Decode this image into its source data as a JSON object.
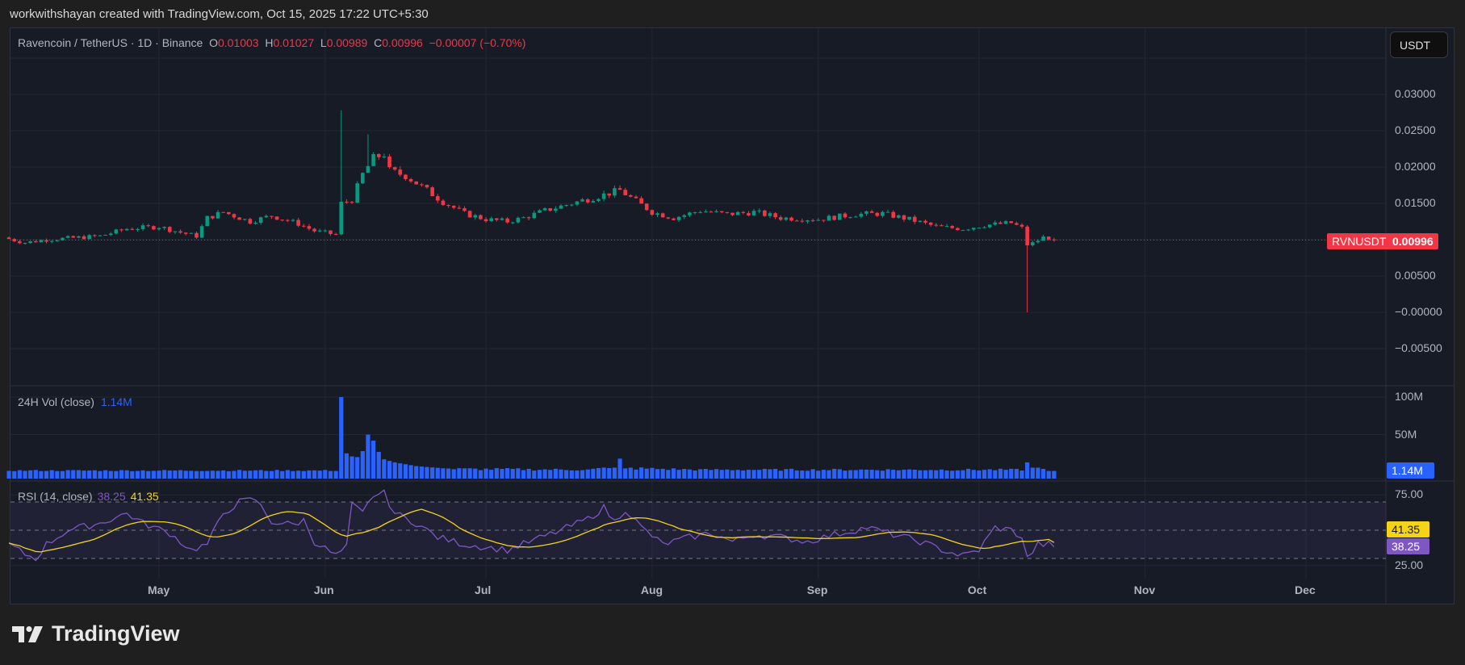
{
  "header": {
    "credit": "workwithshayan created with TradingView.com, Oct 15, 2025 17:22 UTC+5:30"
  },
  "legend": {
    "symbol": "Ravencoin / TetherUS · 1D · Binance",
    "o_label": "O",
    "o": "0.01003",
    "h_label": "H",
    "h": "0.01027",
    "l_label": "L",
    "l": "0.00989",
    "c_label": "C",
    "c": "0.00996",
    "change": "−0.00007 (−0.70%)"
  },
  "currency_button": "USDT",
  "price_axis": [
    "0.03000",
    "0.02500",
    "0.02000",
    "0.01500",
    "0.00500",
    "−0.00000",
    "−0.00500"
  ],
  "price_axis_values": [
    0.03,
    0.025,
    0.02,
    0.015,
    0.005,
    0,
    -0.005
  ],
  "last_price": {
    "symbol": "RVNUSDT",
    "value": "0.00996",
    "price": 0.00996
  },
  "volume": {
    "label": "24H Vol (close)",
    "value": "1.14M",
    "axis": [
      "100M",
      "50M"
    ]
  },
  "rsi": {
    "label": "RSI (14, close)",
    "value": "38.25",
    "ma_value": "41.35",
    "axis": [
      "75.00",
      "25.00"
    ]
  },
  "time_axis": [
    "May",
    "Jun",
    "Jul",
    "Aug",
    "Sep",
    "Oct",
    "Nov",
    "Dec"
  ],
  "brand": "TradingView",
  "colors": {
    "up": "#089981",
    "down": "#f23645",
    "volume": "#2962ff",
    "rsi": "#7e57c2",
    "rsi_ma": "#f5d316"
  },
  "chart_data": {
    "type": "candlestick",
    "title": "Ravencoin / TetherUS · 1D · Binance",
    "ylim": [
      -0.0075,
      0.0355
    ],
    "close_keypoints": [
      [
        "2025-04-03",
        0.0101
      ],
      [
        "2025-04-06",
        0.0096
      ],
      [
        "2025-04-10",
        0.01
      ],
      [
        "2025-04-20",
        0.0105
      ],
      [
        "2025-04-25",
        0.0115
      ],
      [
        "2025-05-01",
        0.0118
      ],
      [
        "2025-05-05",
        0.011
      ],
      [
        "2025-05-08",
        0.0105
      ],
      [
        "2025-05-10",
        0.013
      ],
      [
        "2025-05-13",
        0.0138
      ],
      [
        "2025-05-18",
        0.0125
      ],
      [
        "2025-05-22",
        0.0133
      ],
      [
        "2025-05-27",
        0.0122
      ],
      [
        "2025-05-30",
        0.0112
      ],
      [
        "2025-06-03",
        0.0107
      ],
      [
        "2025-06-04",
        0.015
      ],
      [
        "2025-06-06",
        0.0155
      ],
      [
        "2025-06-08",
        0.019
      ],
      [
        "2025-06-10",
        0.0212
      ],
      [
        "2025-06-12",
        0.0218
      ],
      [
        "2025-06-13",
        0.0195
      ],
      [
        "2025-06-16",
        0.0188
      ],
      [
        "2025-06-20",
        0.0168
      ],
      [
        "2025-06-23",
        0.0152
      ],
      [
        "2025-06-27",
        0.0136
      ],
      [
        "2025-07-01",
        0.0128
      ],
      [
        "2025-07-05",
        0.0125
      ],
      [
        "2025-07-08",
        0.013
      ],
      [
        "2025-07-12",
        0.014
      ],
      [
        "2025-07-17",
        0.015
      ],
      [
        "2025-07-22",
        0.016
      ],
      [
        "2025-07-26",
        0.0168
      ],
      [
        "2025-07-28",
        0.0158
      ],
      [
        "2025-08-01",
        0.0138
      ],
      [
        "2025-08-05",
        0.013
      ],
      [
        "2025-08-10",
        0.014
      ],
      [
        "2025-08-15",
        0.0135
      ],
      [
        "2025-08-20",
        0.0138
      ],
      [
        "2025-08-25",
        0.013
      ],
      [
        "2025-09-01",
        0.0128
      ],
      [
        "2025-09-08",
        0.0135
      ],
      [
        "2025-09-13",
        0.0136
      ],
      [
        "2025-09-18",
        0.0128
      ],
      [
        "2025-09-23",
        0.0118
      ],
      [
        "2025-09-28",
        0.0115
      ],
      [
        "2025-10-02",
        0.012
      ],
      [
        "2025-10-07",
        0.0123
      ],
      [
        "2025-10-09",
        0.0116
      ],
      [
        "2025-10-10",
        0.0093
      ],
      [
        "2025-10-11",
        0.0095
      ],
      [
        "2025-10-12",
        0.0099
      ],
      [
        "2025-10-13",
        0.0103
      ],
      [
        "2025-10-14",
        0.01003
      ],
      [
        "2025-10-15",
        0.00996
      ]
    ],
    "extremes": [
      [
        "2025-06-04",
        "high",
        0.0278
      ],
      [
        "2025-06-09",
        "high",
        0.0245
      ],
      [
        "2025-10-10",
        "low",
        0.0
      ]
    ],
    "volume_keypoints_M": [
      [
        "2025-04-03",
        2
      ],
      [
        "2025-06-03",
        2
      ],
      [
        "2025-06-04",
        100
      ],
      [
        "2025-06-05",
        25
      ],
      [
        "2025-06-06",
        21
      ],
      [
        "2025-06-07",
        20
      ],
      [
        "2025-06-08",
        28
      ],
      [
        "2025-06-09",
        50
      ],
      [
        "2025-06-10",
        42
      ],
      [
        "2025-06-11",
        27
      ],
      [
        "2025-06-12",
        17
      ],
      [
        "2025-06-14",
        13
      ],
      [
        "2025-06-18",
        8
      ],
      [
        "2025-06-25",
        4
      ],
      [
        "2025-07-20",
        3
      ],
      [
        "2025-07-25",
        6
      ],
      [
        "2025-07-26",
        18
      ],
      [
        "2025-07-27",
        5
      ],
      [
        "2025-08-10",
        3
      ],
      [
        "2025-10-09",
        3
      ],
      [
        "2025-10-10",
        13
      ],
      [
        "2025-10-11",
        6
      ],
      [
        "2025-10-15",
        1.14
      ]
    ],
    "rsi_keypoints": [
      [
        "2025-04-03",
        40
      ],
      [
        "2025-04-06",
        33
      ],
      [
        "2025-04-08",
        30
      ],
      [
        "2025-04-10",
        40
      ],
      [
        "2025-04-14",
        50
      ],
      [
        "2025-04-20",
        55
      ],
      [
        "2025-04-25",
        62
      ],
      [
        "2025-04-28",
        55
      ],
      [
        "2025-05-03",
        48
      ],
      [
        "2025-05-07",
        36
      ],
      [
        "2025-05-10",
        40
      ],
      [
        "2025-05-13",
        62
      ],
      [
        "2025-05-16",
        70
      ],
      [
        "2025-05-19",
        72
      ],
      [
        "2025-05-22",
        56
      ],
      [
        "2025-05-26",
        54
      ],
      [
        "2025-05-28",
        57
      ],
      [
        "2025-05-30",
        42
      ],
      [
        "2025-06-03",
        32
      ],
      [
        "2025-06-05",
        38
      ],
      [
        "2025-06-06",
        68
      ],
      [
        "2025-06-08",
        62
      ],
      [
        "2025-06-10",
        75
      ],
      [
        "2025-06-12",
        76
      ],
      [
        "2025-06-14",
        62
      ],
      [
        "2025-06-18",
        55
      ],
      [
        "2025-06-22",
        45
      ],
      [
        "2025-06-27",
        40
      ],
      [
        "2025-07-01",
        38
      ],
      [
        "2025-07-05",
        36
      ],
      [
        "2025-07-10",
        43
      ],
      [
        "2025-07-15",
        50
      ],
      [
        "2025-07-20",
        58
      ],
      [
        "2025-07-23",
        66
      ],
      [
        "2025-07-25",
        56
      ],
      [
        "2025-07-27",
        65
      ],
      [
        "2025-07-30",
        52
      ],
      [
        "2025-08-03",
        40
      ],
      [
        "2025-08-08",
        45
      ],
      [
        "2025-08-12",
        48
      ],
      [
        "2025-08-16",
        42
      ],
      [
        "2025-08-20",
        47
      ],
      [
        "2025-08-25",
        45
      ],
      [
        "2025-08-30",
        42
      ],
      [
        "2025-09-03",
        46
      ],
      [
        "2025-09-10",
        52
      ],
      [
        "2025-09-14",
        48
      ],
      [
        "2025-09-20",
        42
      ],
      [
        "2025-09-25",
        35
      ],
      [
        "2025-09-28",
        32
      ],
      [
        "2025-10-01",
        36
      ],
      [
        "2025-10-04",
        52
      ],
      [
        "2025-10-07",
        50
      ],
      [
        "2025-10-09",
        45
      ],
      [
        "2025-10-10",
        30
      ],
      [
        "2025-10-12",
        40
      ],
      [
        "2025-10-14",
        40
      ],
      [
        "2025-10-15",
        38.25
      ]
    ],
    "rsi_bands": [
      70,
      50,
      30
    ]
  }
}
